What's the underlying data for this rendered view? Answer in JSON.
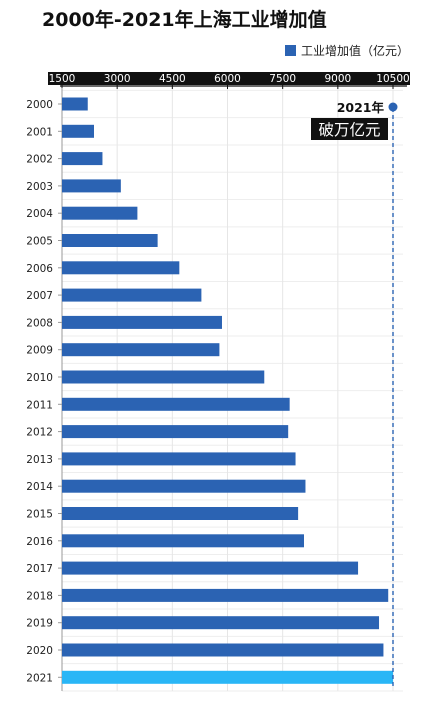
{
  "chart_data": {
    "type": "bar",
    "orientation": "horizontal",
    "title": "2000年-2021年上海工业增加值",
    "legend": "工业增加值（亿元）",
    "legend_position": "top-right",
    "categories": [
      "2000",
      "2001",
      "2002",
      "2003",
      "2004",
      "2005",
      "2006",
      "2007",
      "2008",
      "2009",
      "2010",
      "2011",
      "2012",
      "2013",
      "2014",
      "2015",
      "2016",
      "2017",
      "2018",
      "2019",
      "2020",
      "2021"
    ],
    "series": [
      {
        "name": "工业增加值（亿元）",
        "values": [
          2200,
          2370,
          2600,
          3100,
          3550,
          4100,
          4690,
          5290,
          5850,
          5780,
          7000,
          7690,
          7650,
          7850,
          8120,
          7920,
          8080,
          9550,
          10370,
          10120,
          10240,
          10500
        ]
      }
    ],
    "xlim": [
      1500,
      10500
    ],
    "xticks": [
      1500,
      3000,
      4500,
      6000,
      7500,
      9000,
      10500
    ],
    "annotation": {
      "year": "2021年",
      "text": "破万亿元",
      "value": 10500
    },
    "highlight_category": "2021",
    "grid": true,
    "colors": {
      "bar": "#2b63b3",
      "highlight": "#29b6f6",
      "annotation": "#2b63b3",
      "tick_bg": "#111111"
    }
  }
}
